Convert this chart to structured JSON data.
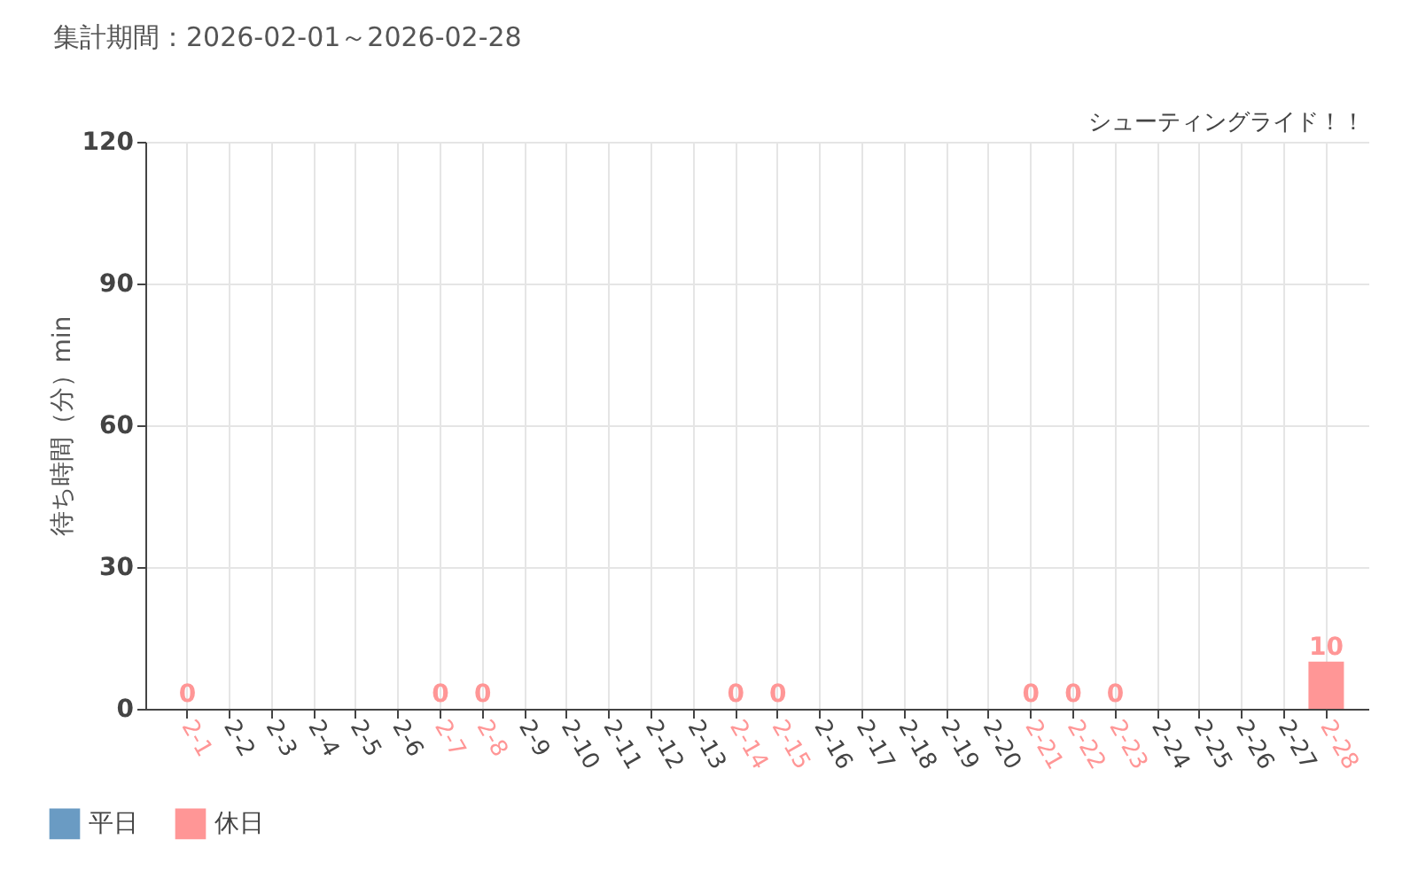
{
  "chart_data": {
    "type": "bar",
    "title": "集計期間：2026-02-01～2026-02-28",
    "subtitle": "シューティングライド！！",
    "ylabel": "待ち時間（分）min",
    "categories": [
      "2-1",
      "2-2",
      "2-3",
      "2-4",
      "2-5",
      "2-6",
      "2-7",
      "2-8",
      "2-9",
      "2-10",
      "2-11",
      "2-12",
      "2-13",
      "2-14",
      "2-15",
      "2-16",
      "2-17",
      "2-18",
      "2-19",
      "2-20",
      "2-21",
      "2-22",
      "2-23",
      "2-24",
      "2-25",
      "2-26",
      "2-27",
      "2-28"
    ],
    "series": [
      {
        "name": "平日",
        "color": "#6a9bc3",
        "values": [
          null,
          null,
          null,
          null,
          null,
          null,
          null,
          null,
          null,
          null,
          null,
          null,
          null,
          null,
          null,
          null,
          null,
          null,
          null,
          null,
          null,
          null,
          null,
          null,
          null,
          null,
          null,
          null
        ]
      },
      {
        "name": "休日",
        "color": "#ff9696",
        "values": [
          0,
          null,
          null,
          null,
          null,
          null,
          0,
          0,
          null,
          null,
          null,
          null,
          null,
          0,
          0,
          null,
          null,
          null,
          null,
          null,
          0,
          0,
          0,
          null,
          null,
          null,
          null,
          10
        ]
      }
    ],
    "ylim": [
      0,
      120
    ],
    "yticks": [
      0,
      30,
      60,
      90,
      120
    ],
    "grid": true,
    "legend": "bottom left",
    "data_labels": true
  }
}
